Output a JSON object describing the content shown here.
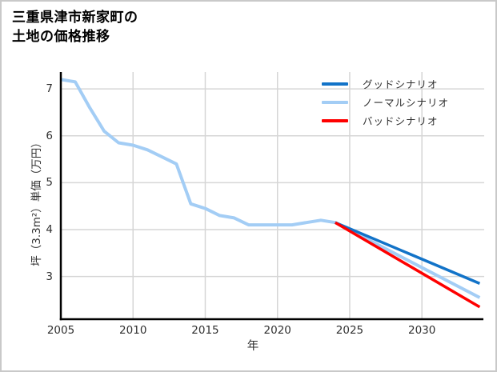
{
  "card": {
    "title_lines": [
      "三重県津市新家町の",
      "土地の価格推移"
    ]
  },
  "chart_data": {
    "type": "line",
    "title": "三重県津市新家町の土地の価格推移",
    "xlabel": "年",
    "ylabel": "坪（3.3m²）単価（万円）",
    "xlim": [
      2005,
      2034.2
    ],
    "ylim": [
      2.09,
      7.36
    ],
    "xticks": [
      2005,
      2010,
      2015,
      2020,
      2025,
      2030
    ],
    "yticks": [
      3,
      4,
      5,
      6,
      7
    ],
    "grid": true,
    "legend_position": "top-right-inside",
    "colors": {
      "good": "#1273c8",
      "normal": "#a3cdf5",
      "bad": "#fe0000",
      "gridline": "#d6d6d6",
      "axis": "#000000",
      "text": "#303030",
      "card_border": "#c9c9c9",
      "background": "#ffffff"
    },
    "series": [
      {
        "id": "normal",
        "name": "ノーマルシナリオ",
        "color": "#a3cdf5",
        "stroke_width": 4,
        "x": [
          2005,
          2006,
          2007,
          2008,
          2009,
          2010,
          2011,
          2012,
          2013,
          2014,
          2015,
          2016,
          2017,
          2018,
          2019,
          2020,
          2021,
          2022,
          2023,
          2024,
          2034
        ],
        "y": [
          7.2,
          7.15,
          6.6,
          6.1,
          5.85,
          5.8,
          5.7,
          5.55,
          5.4,
          4.55,
          4.45,
          4.3,
          4.25,
          4.1,
          4.1,
          4.1,
          4.1,
          4.15,
          4.2,
          4.15,
          2.55
        ]
      },
      {
        "id": "good",
        "name": "グッドシナリオ",
        "color": "#1273c8",
        "stroke_width": 3.5,
        "x": [
          2024,
          2034
        ],
        "y": [
          4.15,
          2.85
        ]
      },
      {
        "id": "bad",
        "name": "バッドシナリオ",
        "color": "#fe0000",
        "stroke_width": 3.5,
        "x": [
          2024,
          2034
        ],
        "y": [
          4.15,
          2.35
        ]
      }
    ],
    "legend": [
      {
        "label": "グッドシナリオ",
        "color": "#1273c8"
      },
      {
        "label": "ノーマルシナリオ",
        "color": "#a3cdf5"
      },
      {
        "label": "バッドシナリオ",
        "color": "#fe0000"
      }
    ]
  }
}
